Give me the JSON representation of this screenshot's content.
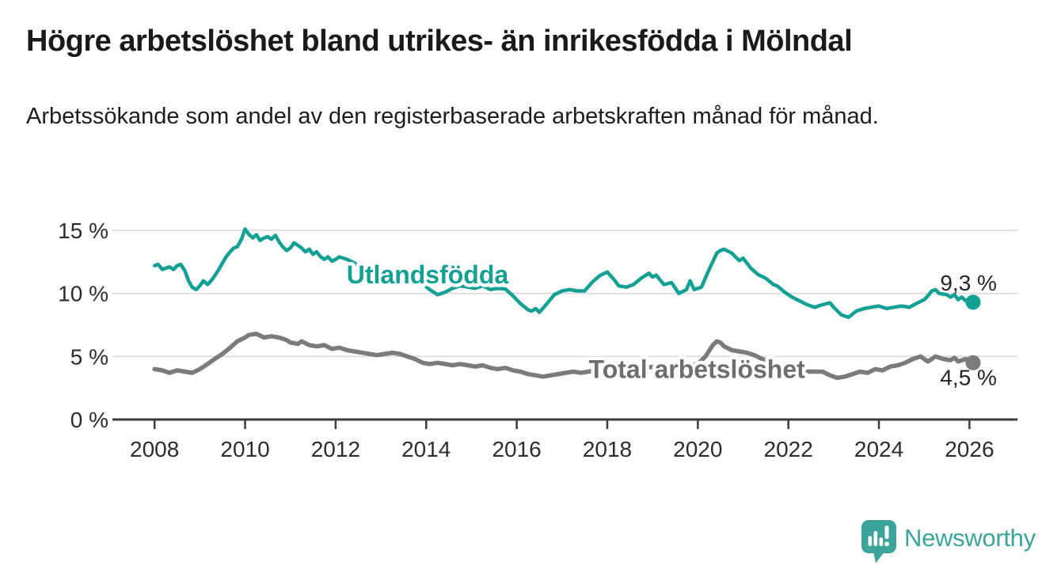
{
  "chart_data": {
    "type": "line",
    "title": "Högre arbetslöshet bland utrikes- än inrikesfödda i Mölndal",
    "subtitle": "Arbetssökande som andel av den registerbaserade arbetskraften månad för månad.",
    "unit": "%",
    "grid": "horizontal-only",
    "legend_position": "inline-labels",
    "x_axis": {
      "range": [
        2007.07,
        2027.06
      ],
      "ticks": [
        2008,
        2010,
        2012,
        2014,
        2016,
        2018,
        2020,
        2022,
        2024,
        2026
      ],
      "tick_labels": [
        "2008",
        "2010",
        "2012",
        "2014",
        "2016",
        "2018",
        "2020",
        "2022",
        "2024",
        "2026"
      ]
    },
    "y_axis": {
      "range": [
        0,
        15
      ],
      "ticks": [
        0,
        5,
        10,
        15
      ],
      "tick_labels": [
        "0 %",
        "5 %",
        "10 %",
        "15 %"
      ]
    },
    "series": [
      {
        "id": "utlandsfodda",
        "name": "Utlandsfödda",
        "color": "#14A093",
        "line_width": 4.5,
        "label_pos": {
          "x": 2014.03,
          "y": 11.5
        },
        "end_value": 9.3,
        "end_label": "9,3 %",
        "end_label_offset": {
          "dx": 30,
          "dy": -15
        },
        "points": [
          [
            2008.0,
            12.2
          ],
          [
            2008.08,
            12.3
          ],
          [
            2008.17,
            11.9
          ],
          [
            2008.25,
            12.0
          ],
          [
            2008.33,
            12.1
          ],
          [
            2008.42,
            11.9
          ],
          [
            2008.5,
            12.2
          ],
          [
            2008.58,
            12.3
          ],
          [
            2008.67,
            11.8
          ],
          [
            2008.75,
            11.0
          ],
          [
            2008.83,
            10.5
          ],
          [
            2008.92,
            10.3
          ],
          [
            2009.0,
            10.6
          ],
          [
            2009.08,
            11.0
          ],
          [
            2009.17,
            10.7
          ],
          [
            2009.25,
            11.0
          ],
          [
            2009.33,
            11.4
          ],
          [
            2009.42,
            11.9
          ],
          [
            2009.5,
            12.4
          ],
          [
            2009.58,
            12.9
          ],
          [
            2009.67,
            13.3
          ],
          [
            2009.75,
            13.6
          ],
          [
            2009.83,
            13.7
          ],
          [
            2009.92,
            14.3
          ],
          [
            2010.0,
            15.1
          ],
          [
            2010.08,
            14.7
          ],
          [
            2010.17,
            14.4
          ],
          [
            2010.25,
            14.65
          ],
          [
            2010.33,
            14.2
          ],
          [
            2010.42,
            14.4
          ],
          [
            2010.5,
            14.5
          ],
          [
            2010.58,
            14.3
          ],
          [
            2010.67,
            14.6
          ],
          [
            2010.75,
            14.1
          ],
          [
            2010.83,
            13.7
          ],
          [
            2010.92,
            13.4
          ],
          [
            2011.0,
            13.6
          ],
          [
            2011.08,
            14.0
          ],
          [
            2011.17,
            13.8
          ],
          [
            2011.25,
            13.6
          ],
          [
            2011.33,
            13.3
          ],
          [
            2011.42,
            13.5
          ],
          [
            2011.5,
            13.1
          ],
          [
            2011.58,
            13.3
          ],
          [
            2011.67,
            12.9
          ],
          [
            2011.75,
            12.7
          ],
          [
            2011.83,
            12.9
          ],
          [
            2011.92,
            12.55
          ],
          [
            2012.0,
            12.7
          ],
          [
            2012.08,
            12.9
          ],
          [
            2012.25,
            12.7
          ],
          [
            2012.42,
            12.4
          ],
          [
            2012.58,
            12.0
          ],
          [
            2012.75,
            11.8
          ],
          [
            2012.92,
            11.5
          ],
          [
            2013.08,
            11.4
          ],
          [
            2013.25,
            11.6
          ],
          [
            2013.42,
            11.8
          ],
          [
            2013.58,
            11.9
          ],
          [
            2013.75,
            11.4
          ],
          [
            2013.92,
            10.8
          ],
          [
            2014.08,
            10.3
          ],
          [
            2014.25,
            9.9
          ],
          [
            2014.42,
            10.1
          ],
          [
            2014.58,
            10.4
          ],
          [
            2014.75,
            10.6
          ],
          [
            2014.92,
            10.5
          ],
          [
            2015.08,
            10.4
          ],
          [
            2015.25,
            10.6
          ],
          [
            2015.42,
            10.3
          ],
          [
            2015.58,
            10.4
          ],
          [
            2015.75,
            10.35
          ],
          [
            2015.92,
            9.8
          ],
          [
            2016.08,
            9.2
          ],
          [
            2016.25,
            8.7
          ],
          [
            2016.33,
            8.6
          ],
          [
            2016.42,
            8.8
          ],
          [
            2016.5,
            8.5
          ],
          [
            2016.67,
            9.2
          ],
          [
            2016.83,
            9.9
          ],
          [
            2017.0,
            10.2
          ],
          [
            2017.17,
            10.3
          ],
          [
            2017.33,
            10.2
          ],
          [
            2017.5,
            10.2
          ],
          [
            2017.67,
            10.9
          ],
          [
            2017.83,
            11.4
          ],
          [
            2018.0,
            11.7
          ],
          [
            2018.17,
            11.0
          ],
          [
            2018.25,
            10.6
          ],
          [
            2018.42,
            10.5
          ],
          [
            2018.58,
            10.7
          ],
          [
            2018.75,
            11.2
          ],
          [
            2018.92,
            11.6
          ],
          [
            2019.0,
            11.3
          ],
          [
            2019.08,
            11.45
          ],
          [
            2019.25,
            10.7
          ],
          [
            2019.42,
            10.85
          ],
          [
            2019.58,
            10.0
          ],
          [
            2019.75,
            10.3
          ],
          [
            2019.83,
            11.0
          ],
          [
            2019.92,
            10.3
          ],
          [
            2020.08,
            10.5
          ],
          [
            2020.25,
            11.9
          ],
          [
            2020.42,
            13.2
          ],
          [
            2020.5,
            13.4
          ],
          [
            2020.58,
            13.5
          ],
          [
            2020.75,
            13.2
          ],
          [
            2020.83,
            12.9
          ],
          [
            2020.92,
            12.6
          ],
          [
            2021.0,
            12.8
          ],
          [
            2021.17,
            12.0
          ],
          [
            2021.33,
            11.5
          ],
          [
            2021.5,
            11.2
          ],
          [
            2021.67,
            10.7
          ],
          [
            2021.75,
            10.6
          ],
          [
            2021.92,
            10.1
          ],
          [
            2022.08,
            9.7
          ],
          [
            2022.25,
            9.4
          ],
          [
            2022.42,
            9.1
          ],
          [
            2022.58,
            8.9
          ],
          [
            2022.75,
            9.1
          ],
          [
            2022.92,
            9.25
          ],
          [
            2023.0,
            8.9
          ],
          [
            2023.17,
            8.3
          ],
          [
            2023.33,
            8.1
          ],
          [
            2023.5,
            8.6
          ],
          [
            2023.67,
            8.8
          ],
          [
            2023.83,
            8.9
          ],
          [
            2024.0,
            9.0
          ],
          [
            2024.17,
            8.8
          ],
          [
            2024.33,
            8.9
          ],
          [
            2024.5,
            9.0
          ],
          [
            2024.67,
            8.9
          ],
          [
            2024.83,
            9.2
          ],
          [
            2025.0,
            9.5
          ],
          [
            2025.08,
            9.8
          ],
          [
            2025.17,
            10.2
          ],
          [
            2025.25,
            10.3
          ],
          [
            2025.33,
            10.0
          ],
          [
            2025.5,
            9.9
          ],
          [
            2025.58,
            9.7
          ],
          [
            2025.67,
            9.9
          ],
          [
            2025.75,
            9.5
          ],
          [
            2025.83,
            9.7
          ],
          [
            2025.92,
            9.4
          ],
          [
            2026.0,
            9.6
          ],
          [
            2026.08,
            9.3
          ]
        ]
      },
      {
        "id": "total",
        "name": "Total arbetslöshet",
        "color": "#7b7b7b",
        "label_color": "#6e6e6e",
        "line_width": 5.5,
        "label_pos": {
          "x": 2019.98,
          "y": 4.0
        },
        "end_value": 4.5,
        "end_label": "4,5 %",
        "end_label_offset": {
          "dx": 30,
          "dy": 28
        },
        "points": [
          [
            2008.0,
            4.0
          ],
          [
            2008.17,
            3.9
          ],
          [
            2008.33,
            3.7
          ],
          [
            2008.5,
            3.9
          ],
          [
            2008.67,
            3.8
          ],
          [
            2008.83,
            3.7
          ],
          [
            2009.0,
            4.0
          ],
          [
            2009.17,
            4.4
          ],
          [
            2009.33,
            4.8
          ],
          [
            2009.5,
            5.2
          ],
          [
            2009.67,
            5.7
          ],
          [
            2009.83,
            6.2
          ],
          [
            2010.0,
            6.5
          ],
          [
            2010.08,
            6.7
          ],
          [
            2010.25,
            6.8
          ],
          [
            2010.42,
            6.5
          ],
          [
            2010.58,
            6.6
          ],
          [
            2010.75,
            6.5
          ],
          [
            2010.92,
            6.3
          ],
          [
            2011.0,
            6.1
          ],
          [
            2011.17,
            6.0
          ],
          [
            2011.25,
            6.2
          ],
          [
            2011.42,
            5.9
          ],
          [
            2011.58,
            5.8
          ],
          [
            2011.75,
            5.9
          ],
          [
            2011.92,
            5.6
          ],
          [
            2012.08,
            5.7
          ],
          [
            2012.25,
            5.5
          ],
          [
            2012.42,
            5.4
          ],
          [
            2012.58,
            5.3
          ],
          [
            2012.75,
            5.2
          ],
          [
            2012.92,
            5.1
          ],
          [
            2013.08,
            5.2
          ],
          [
            2013.25,
            5.3
          ],
          [
            2013.42,
            5.2
          ],
          [
            2013.58,
            5.0
          ],
          [
            2013.75,
            4.8
          ],
          [
            2013.92,
            4.5
          ],
          [
            2014.08,
            4.4
          ],
          [
            2014.25,
            4.5
          ],
          [
            2014.42,
            4.4
          ],
          [
            2014.58,
            4.3
          ],
          [
            2014.75,
            4.4
          ],
          [
            2014.92,
            4.3
          ],
          [
            2015.08,
            4.2
          ],
          [
            2015.25,
            4.3
          ],
          [
            2015.42,
            4.1
          ],
          [
            2015.58,
            4.0
          ],
          [
            2015.75,
            4.1
          ],
          [
            2015.92,
            3.9
          ],
          [
            2016.08,
            3.8
          ],
          [
            2016.25,
            3.6
          ],
          [
            2016.42,
            3.5
          ],
          [
            2016.58,
            3.4
          ],
          [
            2016.75,
            3.5
          ],
          [
            2016.92,
            3.6
          ],
          [
            2017.08,
            3.7
          ],
          [
            2017.25,
            3.8
          ],
          [
            2017.42,
            3.7
          ],
          [
            2017.58,
            3.8
          ],
          [
            2017.75,
            3.9
          ],
          [
            2017.92,
            3.8
          ],
          [
            2018.08,
            3.9
          ],
          [
            2018.33,
            4.0
          ],
          [
            2018.58,
            4.1
          ],
          [
            2018.83,
            4.1
          ],
          [
            2019.08,
            4.2
          ],
          [
            2019.33,
            4.2
          ],
          [
            2019.58,
            4.3
          ],
          [
            2019.83,
            4.3
          ],
          [
            2020.0,
            4.4
          ],
          [
            2020.17,
            5.0
          ],
          [
            2020.33,
            5.9
          ],
          [
            2020.42,
            6.2
          ],
          [
            2020.5,
            6.1
          ],
          [
            2020.58,
            5.8
          ],
          [
            2020.75,
            5.5
          ],
          [
            2020.92,
            5.4
          ],
          [
            2021.08,
            5.3
          ],
          [
            2021.25,
            5.1
          ],
          [
            2021.42,
            4.8
          ],
          [
            2021.58,
            4.6
          ],
          [
            2021.75,
            4.4
          ],
          [
            2021.92,
            4.1
          ],
          [
            2022.08,
            4.0
          ],
          [
            2022.25,
            3.9
          ],
          [
            2022.42,
            3.8
          ],
          [
            2022.58,
            3.8
          ],
          [
            2022.75,
            3.8
          ],
          [
            2022.92,
            3.5
          ],
          [
            2023.08,
            3.3
          ],
          [
            2023.25,
            3.4
          ],
          [
            2023.42,
            3.6
          ],
          [
            2023.58,
            3.8
          ],
          [
            2023.75,
            3.7
          ],
          [
            2023.92,
            4.0
          ],
          [
            2024.08,
            3.9
          ],
          [
            2024.25,
            4.2
          ],
          [
            2024.42,
            4.3
          ],
          [
            2024.58,
            4.5
          ],
          [
            2024.75,
            4.8
          ],
          [
            2024.92,
            5.0
          ],
          [
            2025.0,
            4.8
          ],
          [
            2025.08,
            4.6
          ],
          [
            2025.17,
            4.8
          ],
          [
            2025.25,
            5.0
          ],
          [
            2025.42,
            4.8
          ],
          [
            2025.58,
            4.7
          ],
          [
            2025.67,
            4.9
          ],
          [
            2025.75,
            4.6
          ],
          [
            2025.92,
            4.8
          ],
          [
            2026.08,
            4.5
          ]
        ]
      }
    ],
    "colors": {
      "axis": "#3c3c3c",
      "grid": "#d9d9d9",
      "tick_text": "#2d2d2d"
    }
  },
  "branding": {
    "label": "Newsworthy",
    "color": "#3da49c"
  }
}
